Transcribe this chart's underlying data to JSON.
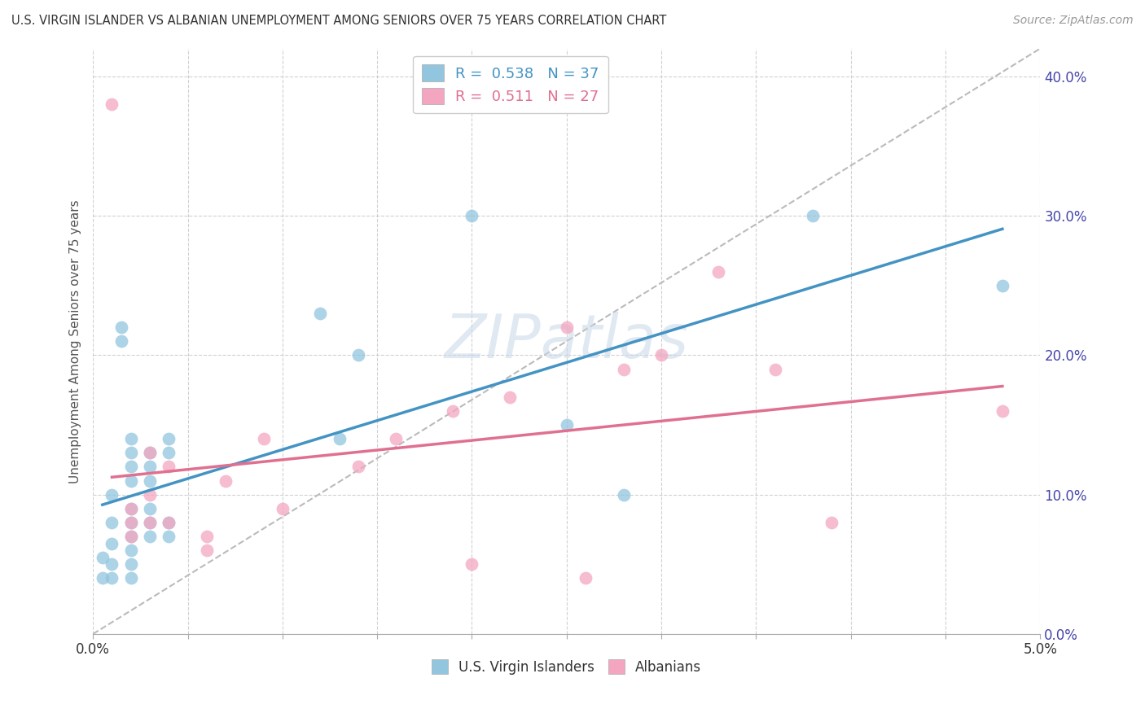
{
  "title": "U.S. VIRGIN ISLANDER VS ALBANIAN UNEMPLOYMENT AMONG SENIORS OVER 75 YEARS CORRELATION CHART",
  "source": "Source: ZipAtlas.com",
  "ylabel": "Unemployment Among Seniors over 75 years",
  "xlabel_blue": "U.S. Virgin Islanders",
  "xlabel_pink": "Albanians",
  "r_blue": 0.538,
  "n_blue": 37,
  "r_pink": 0.511,
  "n_pink": 27,
  "x_lim": [
    0.0,
    0.05
  ],
  "y_lim": [
    0.0,
    0.42
  ],
  "x_ticks": [
    0.0,
    0.005,
    0.01,
    0.015,
    0.02,
    0.025,
    0.03,
    0.035,
    0.04,
    0.045,
    0.05
  ],
  "y_ticks": [
    0.0,
    0.1,
    0.2,
    0.3,
    0.4
  ],
  "y_tick_labels": [
    "0.0%",
    "10.0%",
    "20.0%",
    "30.0%",
    "40.0%"
  ],
  "bg_color": "#ffffff",
  "blue_color": "#92c5de",
  "pink_color": "#f4a6c0",
  "blue_line_color": "#4393c3",
  "pink_line_color": "#e07090",
  "grid_color": "#cccccc",
  "tick_color": "#4444aa",
  "blue_points": [
    [
      0.0005,
      0.055
    ],
    [
      0.0005,
      0.04
    ],
    [
      0.001,
      0.08
    ],
    [
      0.001,
      0.1
    ],
    [
      0.001,
      0.065
    ],
    [
      0.001,
      0.05
    ],
    [
      0.001,
      0.04
    ],
    [
      0.0015,
      0.22
    ],
    [
      0.0015,
      0.21
    ],
    [
      0.002,
      0.14
    ],
    [
      0.002,
      0.13
    ],
    [
      0.002,
      0.12
    ],
    [
      0.002,
      0.11
    ],
    [
      0.002,
      0.09
    ],
    [
      0.002,
      0.08
    ],
    [
      0.002,
      0.07
    ],
    [
      0.002,
      0.06
    ],
    [
      0.002,
      0.05
    ],
    [
      0.002,
      0.04
    ],
    [
      0.003,
      0.13
    ],
    [
      0.003,
      0.12
    ],
    [
      0.003,
      0.11
    ],
    [
      0.003,
      0.09
    ],
    [
      0.003,
      0.08
    ],
    [
      0.003,
      0.07
    ],
    [
      0.004,
      0.14
    ],
    [
      0.004,
      0.13
    ],
    [
      0.004,
      0.08
    ],
    [
      0.004,
      0.07
    ],
    [
      0.012,
      0.23
    ],
    [
      0.013,
      0.14
    ],
    [
      0.014,
      0.2
    ],
    [
      0.02,
      0.3
    ],
    [
      0.025,
      0.15
    ],
    [
      0.028,
      0.1
    ],
    [
      0.038,
      0.3
    ],
    [
      0.048,
      0.25
    ]
  ],
  "pink_points": [
    [
      0.001,
      0.38
    ],
    [
      0.002,
      0.09
    ],
    [
      0.002,
      0.08
    ],
    [
      0.002,
      0.07
    ],
    [
      0.003,
      0.13
    ],
    [
      0.003,
      0.1
    ],
    [
      0.003,
      0.08
    ],
    [
      0.004,
      0.12
    ],
    [
      0.004,
      0.08
    ],
    [
      0.006,
      0.07
    ],
    [
      0.006,
      0.06
    ],
    [
      0.007,
      0.11
    ],
    [
      0.009,
      0.14
    ],
    [
      0.01,
      0.09
    ],
    [
      0.014,
      0.12
    ],
    [
      0.016,
      0.14
    ],
    [
      0.019,
      0.16
    ],
    [
      0.02,
      0.05
    ],
    [
      0.022,
      0.17
    ],
    [
      0.025,
      0.22
    ],
    [
      0.026,
      0.04
    ],
    [
      0.028,
      0.19
    ],
    [
      0.03,
      0.2
    ],
    [
      0.033,
      0.26
    ],
    [
      0.036,
      0.19
    ],
    [
      0.039,
      0.08
    ],
    [
      0.048,
      0.16
    ]
  ],
  "legend_r_blue": "R =  0.538   N = 37",
  "legend_r_pink": "R =  0.511   N = 27"
}
